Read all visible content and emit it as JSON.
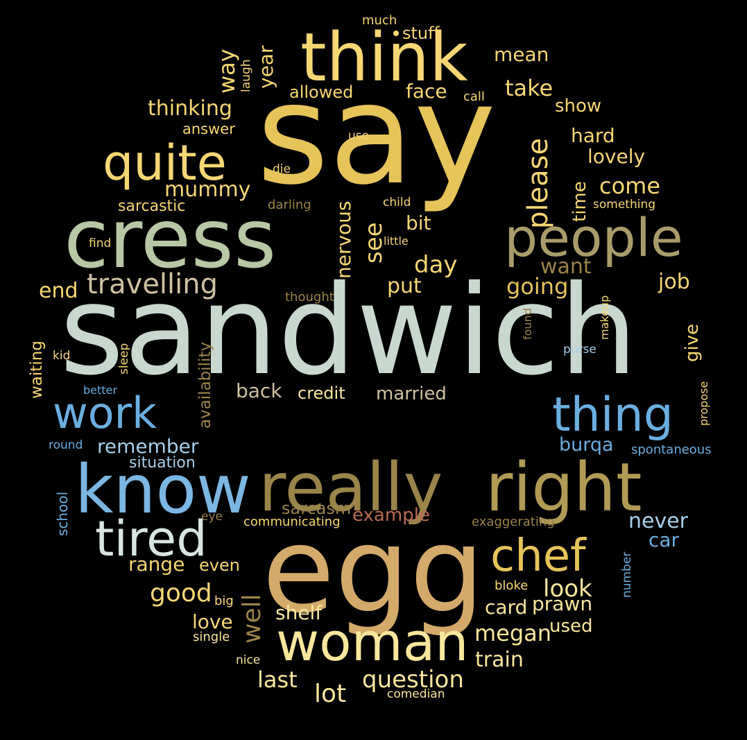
{
  "palette": {
    "background": "#000000",
    "gold": "#e6c45a",
    "yellow": "#f7d774",
    "pale_yellow": "#f8e79c",
    "sage": "#b8c7a4",
    "mint": "#c8d8cf",
    "blue": "#6aaee0",
    "light_blue": "#a7cfea",
    "olive": "#a99c6a",
    "brown": "#9a8449",
    "tan": "#d3aa6a",
    "beige": "#cfc1a2",
    "rust": "#b86b55",
    "dim_gold": "#8f7a45"
  },
  "words": [
    {
      "text": "say",
      "color": "#e6c45a"
    },
    {
      "text": "sandwich",
      "color": "#c8d8cf"
    },
    {
      "text": "egg",
      "color": "#d3aa6a"
    },
    {
      "text": "cress",
      "color": "#b8c7a4"
    },
    {
      "text": "think",
      "color": "#f7d774"
    },
    {
      "text": "really",
      "color": "#9a8449"
    },
    {
      "text": "right",
      "color": "#b19a55"
    },
    {
      "text": "know",
      "color": "#7cb6e2"
    },
    {
      "text": "people",
      "color": "#a99c6a"
    },
    {
      "text": "woman",
      "color": "#f8e79c"
    },
    {
      "text": "thing",
      "color": "#6aaee0"
    },
    {
      "text": "quite",
      "color": "#f7d774"
    },
    {
      "text": "tired",
      "color": "#d8e6df"
    },
    {
      "text": "work",
      "color": "#6aaee0"
    },
    {
      "text": "chef",
      "color": "#e6c45a"
    },
    {
      "text": "travelling",
      "color": "#cfc1a2"
    },
    {
      "text": "please",
      "color": "#f7d774"
    },
    {
      "text": "mummy",
      "color": "#f7d774"
    },
    {
      "text": "come",
      "color": "#f7d774"
    },
    {
      "text": "day",
      "color": "#f7d774"
    },
    {
      "text": "going",
      "color": "#e6c45a"
    },
    {
      "text": "want",
      "color": "#9a8449"
    },
    {
      "text": "job",
      "color": "#f7d774"
    },
    {
      "text": "end",
      "color": "#f7d774"
    },
    {
      "text": "put",
      "color": "#f7d774"
    },
    {
      "text": "see",
      "color": "#f7d774"
    },
    {
      "text": "bit",
      "color": "#f7d774"
    },
    {
      "text": "nervous",
      "color": "#f7d774"
    },
    {
      "text": "thinking",
      "color": "#f7d774"
    },
    {
      "text": "way",
      "color": "#f7d774"
    },
    {
      "text": "year",
      "color": "#f7d774"
    },
    {
      "text": "take",
      "color": "#f7d774"
    },
    {
      "text": "face",
      "color": "#f7d774"
    },
    {
      "text": "allowed",
      "color": "#f7d774"
    },
    {
      "text": "stuff",
      "color": "#f7d774"
    },
    {
      "text": "mean",
      "color": "#f7d774"
    },
    {
      "text": "show",
      "color": "#f7d774"
    },
    {
      "text": "hard",
      "color": "#f7d774"
    },
    {
      "text": "lovely",
      "color": "#f7d774"
    },
    {
      "text": "time",
      "color": "#f7d774"
    },
    {
      "text": "answer",
      "color": "#f7d774"
    },
    {
      "text": "sarcastic",
      "color": "#f7d774"
    },
    {
      "text": "laugh",
      "color": "#f7d774"
    },
    {
      "text": "much",
      "color": "#f7d774"
    },
    {
      "text": "call",
      "color": "#f7d774"
    },
    {
      "text": "use",
      "color": "#f7d774"
    },
    {
      "text": "die",
      "color": "#f7d774"
    },
    {
      "text": "darling",
      "color": "#9a8449"
    },
    {
      "text": "child",
      "color": "#f7d774"
    },
    {
      "text": "something",
      "color": "#f7d774"
    },
    {
      "text": "find",
      "color": "#f7d774"
    },
    {
      "text": "little",
      "color": "#f7d774"
    },
    {
      "text": "thought",
      "color": "#9a8449"
    },
    {
      "text": "availability",
      "color": "#9a8449"
    },
    {
      "text": "waiting",
      "color": "#f7d774"
    },
    {
      "text": "kid",
      "color": "#f7d774"
    },
    {
      "text": "sleep",
      "color": "#f7d774"
    },
    {
      "text": "better",
      "color": "#6aaee0"
    },
    {
      "text": "back",
      "color": "#cfc1a2"
    },
    {
      "text": "credit",
      "color": "#f8e79c"
    },
    {
      "text": "married",
      "color": "#cfc1a2"
    },
    {
      "text": "give",
      "color": "#f7d774"
    },
    {
      "text": "found",
      "color": "#9a8449"
    },
    {
      "text": "makeup",
      "color": "#f7d774"
    },
    {
      "text": "purse",
      "color": "#a7cfea"
    },
    {
      "text": "propose",
      "color": "#f7d774"
    },
    {
      "text": "round",
      "color": "#6aaee0"
    },
    {
      "text": "remember",
      "color": "#a7cfea"
    },
    {
      "text": "situation",
      "color": "#a7cfea"
    },
    {
      "text": "burqa",
      "color": "#6aaee0"
    },
    {
      "text": "spontaneous",
      "color": "#6aaee0"
    },
    {
      "text": "school",
      "color": "#6aaee0"
    },
    {
      "text": "eye",
      "color": "#9a8449"
    },
    {
      "text": "communicating",
      "color": "#f7d774"
    },
    {
      "text": "sarcasm",
      "color": "#9a8449"
    },
    {
      "text": "example",
      "color": "#b86b55"
    },
    {
      "text": "exaggerating",
      "color": "#9a8449"
    },
    {
      "text": "never",
      "color": "#a7cfea"
    },
    {
      "text": "car",
      "color": "#6aaee0"
    },
    {
      "text": "range",
      "color": "#f7d774"
    },
    {
      "text": "even",
      "color": "#f7d774"
    },
    {
      "text": "good",
      "color": "#f7d774"
    },
    {
      "text": "well",
      "color": "#9a8449"
    },
    {
      "text": "look",
      "color": "#f8e79c"
    },
    {
      "text": "number",
      "color": "#6aaee0"
    },
    {
      "text": "big",
      "color": "#f7d774"
    },
    {
      "text": "bloke",
      "color": "#f7d774"
    },
    {
      "text": "love",
      "color": "#f7d774"
    },
    {
      "text": "shelf",
      "color": "#f8e79c"
    },
    {
      "text": "card",
      "color": "#f8e79c"
    },
    {
      "text": "prawn",
      "color": "#f8e79c"
    },
    {
      "text": "megan",
      "color": "#f8e79c"
    },
    {
      "text": "used",
      "color": "#f8e79c"
    },
    {
      "text": "single",
      "color": "#f8e79c"
    },
    {
      "text": "train",
      "color": "#f8e79c"
    },
    {
      "text": "nice",
      "color": "#f8e79c"
    },
    {
      "text": "last",
      "color": "#f8e79c"
    },
    {
      "text": "question",
      "color": "#f8e79c"
    },
    {
      "text": "lot",
      "color": "#f8e79c"
    },
    {
      "text": "comedian",
      "color": "#f8e79c"
    }
  ]
}
